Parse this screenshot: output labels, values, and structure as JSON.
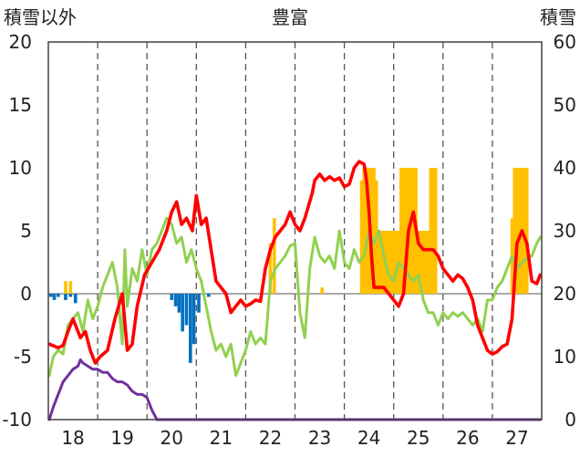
{
  "chart_data": {
    "type": "line",
    "title": "豊富",
    "left_axis_label": "積雪以外",
    "right_axis_label": "積雪",
    "left_ylim": [
      -10,
      20
    ],
    "left_yticks": [
      "20",
      "15",
      "10",
      "5",
      "0",
      "-5",
      "-10"
    ],
    "right_ylim": [
      0,
      60
    ],
    "right_yticks": [
      "60",
      "50",
      "40",
      "30",
      "20",
      "10",
      "0"
    ],
    "xlim": [
      17.5,
      27.5
    ],
    "xticks": [
      "18",
      "19",
      "20",
      "21",
      "22",
      "23",
      "24",
      "25",
      "26",
      "27"
    ],
    "grid": "dashed vertical at each day",
    "colors": {
      "red": "#ff0000",
      "green": "#92d050",
      "purple": "#7030a0",
      "orange": "#ffc000",
      "blue": "#0070c0"
    },
    "series": [
      {
        "color": "red",
        "axis": "left",
        "x": [
          17.52,
          17.7,
          17.8,
          17.9,
          18.0,
          18.05,
          18.15,
          18.25,
          18.35,
          18.45,
          18.55,
          18.7,
          18.85,
          19.0,
          19.1,
          19.2,
          19.3,
          19.45,
          19.6,
          19.75,
          19.9,
          20.0,
          20.1,
          20.2,
          20.3,
          20.42,
          20.5,
          20.6,
          20.7,
          20.8,
          20.9,
          21.0,
          21.1,
          21.2,
          21.3,
          21.4,
          21.5,
          21.6,
          21.7,
          21.8,
          21.9,
          22.0,
          22.1,
          22.2,
          22.3,
          22.4,
          22.5,
          22.6,
          22.7,
          22.85,
          22.9,
          23.0,
          23.1,
          23.2,
          23.3,
          23.4,
          23.5,
          23.6,
          23.7,
          23.8,
          23.9,
          23.95,
          24.0,
          24.05,
          24.1,
          24.2,
          24.3,
          24.4,
          24.5,
          24.6,
          24.7,
          24.8,
          24.9,
          25.0,
          25.1,
          25.2,
          25.3,
          25.4,
          25.5,
          25.6,
          25.7,
          25.8,
          25.9,
          26.0,
          26.1,
          26.2,
          26.3,
          26.4,
          26.5,
          26.6,
          26.7,
          26.8,
          26.9,
          27.0,
          27.1,
          27.2,
          27.3,
          27.4,
          27.47
        ],
        "y": [
          -4.0,
          -4.3,
          -4.1,
          -3.0,
          -2.0,
          -2.5,
          -3.5,
          -3.0,
          -4.5,
          -5.5,
          -5.0,
          -4.5,
          -2.0,
          0.0,
          -4.5,
          -4.0,
          -1.0,
          1.5,
          2.5,
          3.5,
          5.0,
          6.5,
          7.3,
          5.5,
          6.0,
          5.0,
          7.8,
          5.5,
          6.0,
          3.5,
          1.0,
          0.5,
          0.0,
          -1.5,
          -1.0,
          -0.5,
          -1.0,
          -0.8,
          -0.5,
          -0.6,
          2.0,
          3.5,
          4.5,
          5.0,
          5.5,
          6.5,
          5.5,
          5.0,
          6.0,
          8.0,
          9.0,
          9.5,
          9.0,
          9.3,
          9.0,
          9.2,
          8.5,
          8.7,
          10.0,
          10.5,
          10.3,
          9.0,
          6.5,
          3.0,
          0.5,
          0.5,
          0.5,
          0.0,
          -0.5,
          -1.0,
          0.0,
          5.0,
          6.5,
          4.0,
          3.5,
          3.5,
          3.5,
          3.0,
          2.0,
          1.5,
          1.0,
          1.5,
          1.2,
          0.5,
          -0.5,
          -2.5,
          -3.5,
          -4.5,
          -4.8,
          -4.6,
          -4.2,
          -4.0,
          -2.0,
          4.0,
          5.0,
          4.0,
          1.0,
          0.8,
          1.5
        ]
      },
      {
        "color": "green",
        "axis": "left",
        "x": [
          17.52,
          17.6,
          17.7,
          17.8,
          17.9,
          18.0,
          18.1,
          18.2,
          18.3,
          18.4,
          18.5,
          18.6,
          18.7,
          18.8,
          18.9,
          19.0,
          19.05,
          19.1,
          19.2,
          19.3,
          19.4,
          19.5,
          19.6,
          19.7,
          19.8,
          19.9,
          20.0,
          20.1,
          20.2,
          20.3,
          20.4,
          20.5,
          20.6,
          20.7,
          20.8,
          20.9,
          21.0,
          21.1,
          21.2,
          21.3,
          21.4,
          21.5,
          21.6,
          21.7,
          21.8,
          21.9,
          22.0,
          22.1,
          22.2,
          22.3,
          22.4,
          22.5,
          22.6,
          22.7,
          22.8,
          22.9,
          23.0,
          23.1,
          23.2,
          23.3,
          23.4,
          23.5,
          23.6,
          23.7,
          23.8,
          23.9,
          24.0,
          24.1,
          24.2,
          24.3,
          24.4,
          24.5,
          24.6,
          24.7,
          24.8,
          24.9,
          25.0,
          25.1,
          25.2,
          25.3,
          25.4,
          25.5,
          25.6,
          25.7,
          25.8,
          25.9,
          26.0,
          26.1,
          26.2,
          26.3,
          26.4,
          26.5,
          26.6,
          26.7,
          26.8,
          26.9,
          27.0,
          27.1,
          27.2,
          27.3,
          27.4,
          27.47
        ],
        "y": [
          -6.5,
          -5.0,
          -4.5,
          -4.8,
          -2.5,
          -2.0,
          -1.5,
          -3.0,
          -0.5,
          -2.0,
          -1.0,
          0.5,
          1.5,
          2.5,
          0.5,
          -4.0,
          3.5,
          -1.0,
          2.0,
          1.0,
          3.5,
          1.5,
          3.5,
          4.0,
          5.0,
          6.0,
          5.5,
          4.0,
          4.5,
          2.5,
          3.5,
          2.0,
          1.0,
          -1.0,
          -3.0,
          -4.5,
          -4.0,
          -5.0,
          -4.0,
          -6.5,
          -5.5,
          -4.5,
          -3.0,
          -4.0,
          -3.5,
          -4.0,
          1.0,
          2.0,
          2.5,
          3.0,
          3.8,
          4.0,
          -1.5,
          -3.5,
          2.0,
          4.5,
          3.0,
          2.5,
          3.0,
          2.0,
          5.0,
          2.5,
          2.0,
          3.5,
          2.5,
          3.0,
          5.0,
          4.0,
          5.0,
          3.0,
          1.5,
          1.0,
          2.5,
          2.0,
          1.5,
          1.0,
          1.5,
          -0.5,
          -1.5,
          -1.5,
          -2.5,
          -1.5,
          -2.0,
          -1.5,
          -1.8,
          -1.5,
          -2.0,
          -2.5,
          -2.0,
          -3.0,
          -0.5,
          -0.5,
          0.5,
          1.0,
          2.0,
          3.0,
          2.0,
          2.5,
          2.8,
          3.0,
          4.0,
          4.5
        ]
      },
      {
        "color": "purple",
        "axis": "right",
        "x": [
          17.52,
          17.6,
          17.7,
          17.8,
          17.9,
          18.0,
          18.1,
          18.15,
          18.2,
          18.3,
          18.4,
          18.5,
          18.6,
          18.7,
          18.8,
          18.9,
          19.0,
          19.1,
          19.2,
          19.3,
          19.4,
          19.5,
          19.6,
          19.7,
          27.47
        ],
        "y": [
          0,
          2,
          4,
          6,
          7,
          8,
          8.5,
          9.5,
          9,
          8.5,
          8,
          8,
          7.5,
          7.5,
          6.5,
          6,
          6,
          5.5,
          4.5,
          4,
          4,
          3.5,
          1.5,
          0,
          0
        ]
      }
    ],
    "bars": [
      {
        "color": "orange",
        "axis": "right",
        "baseline": 20,
        "x": [
          17.85,
          17.95,
          22.0,
          22.08,
          23.05,
          23.85,
          23.9,
          23.95,
          24.0,
          24.05,
          24.1,
          24.15,
          24.2,
          24.25,
          24.3,
          24.35,
          24.4,
          24.45,
          24.5,
          24.55,
          24.6,
          24.65,
          24.7,
          24.75,
          24.8,
          24.85,
          24.9,
          24.95,
          25.0,
          25.05,
          25.1,
          25.15,
          25.2,
          25.25,
          25.3,
          25.35,
          26.9,
          26.95,
          27.0,
          27.05,
          27.1,
          27.15,
          27.2
        ],
        "y": [
          22,
          22,
          28,
          32,
          21,
          38,
          40,
          40,
          40,
          40,
          40,
          38,
          30,
          30,
          30,
          30,
          30,
          30,
          30,
          30,
          30,
          40,
          40,
          40,
          40,
          40,
          40,
          40,
          30,
          30,
          30,
          30,
          30,
          40,
          40,
          40,
          32,
          40,
          40,
          40,
          40,
          40,
          40
        ]
      },
      {
        "color": "blue",
        "axis": "right",
        "baseline": 20,
        "x": [
          17.55,
          17.62,
          17.7,
          17.85,
          17.95,
          18.05,
          20.0,
          20.08,
          20.15,
          20.22,
          20.3,
          20.38,
          20.45,
          20.55,
          20.75
        ],
        "y": [
          19.5,
          19,
          19.5,
          19,
          19.5,
          18.5,
          19,
          18,
          17,
          14,
          15,
          9,
          12,
          17,
          19.5
        ]
      }
    ]
  }
}
